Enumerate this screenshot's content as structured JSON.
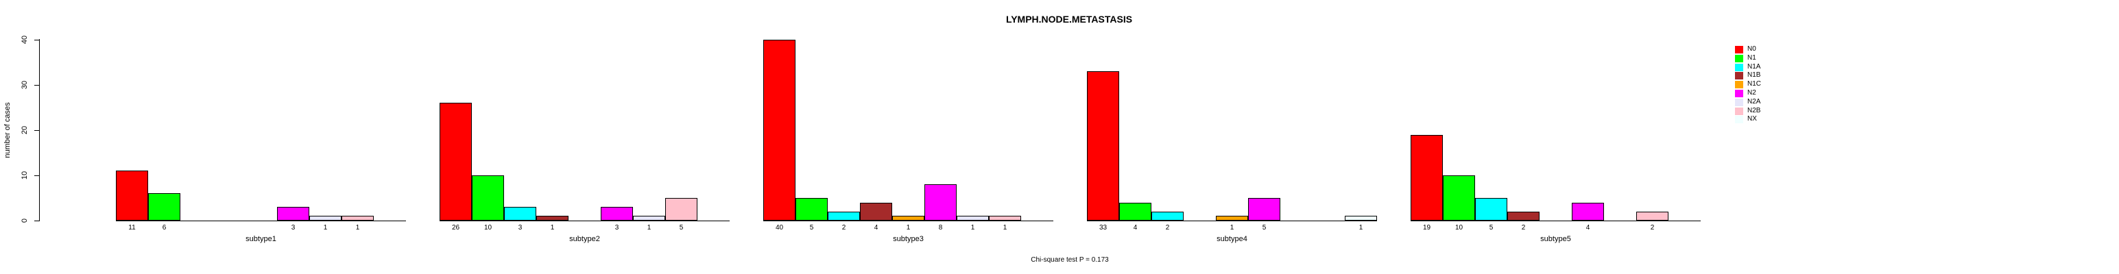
{
  "chart_data": {
    "type": "bar",
    "title": "LYMPH.NODE.METASTASIS",
    "ylabel": "number of cases",
    "xlabel": "",
    "caption": "Chi-square test P = 0.173",
    "ylim": [
      0,
      40
    ],
    "yticks": [
      0,
      10,
      20,
      30,
      40
    ],
    "grid": false,
    "legend_position": "right",
    "categories": [
      "N0",
      "N1",
      "N1A",
      "N1B",
      "N1C",
      "N2",
      "N2A",
      "N2B",
      "NX"
    ],
    "palette": [
      "#FF0000",
      "#00FF00",
      "#00FFFF",
      "#A52A2A",
      "#FFA500",
      "#FF00FF",
      "#E6E6FA",
      "#FFC0CB",
      "#F0FFFF"
    ],
    "axis_color": "#000000",
    "bar_border_color": "#000000",
    "groups": [
      {
        "label": "subtype1",
        "values": [
          11,
          6,
          0,
          0,
          0,
          3,
          1,
          1,
          0
        ]
      },
      {
        "label": "subtype2",
        "values": [
          26,
          10,
          3,
          1,
          0,
          3,
          1,
          5,
          0
        ]
      },
      {
        "label": "subtype3",
        "values": [
          40,
          5,
          2,
          4,
          1,
          8,
          1,
          1,
          0
        ]
      },
      {
        "label": "subtype4",
        "values": [
          33,
          4,
          2,
          0,
          1,
          5,
          0,
          0,
          1
        ]
      },
      {
        "label": "subtype5",
        "values": [
          19,
          10,
          5,
          2,
          0,
          4,
          0,
          2,
          0
        ]
      }
    ]
  }
}
